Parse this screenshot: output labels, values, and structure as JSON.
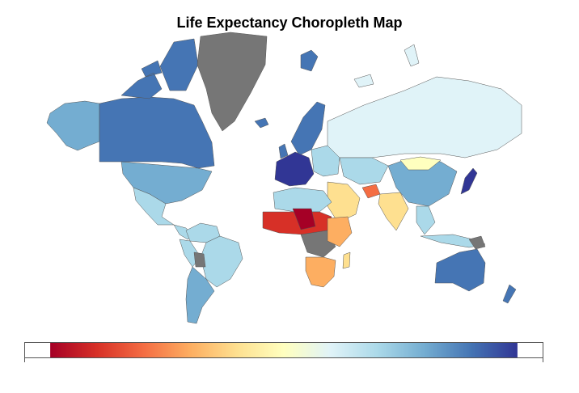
{
  "title": "Life Expectancy Choropleth Map",
  "colors": {
    "no_data": "#767676",
    "ocean": "#ffffff",
    "border": "#555555",
    "scale": [
      "#a50026",
      "#d73027",
      "#f46d43",
      "#fdae61",
      "#fee090",
      "#ffffbf",
      "#e0f3f8",
      "#abd9e9",
      "#74add1",
      "#4575b4",
      "#313695"
    ]
  }
}
